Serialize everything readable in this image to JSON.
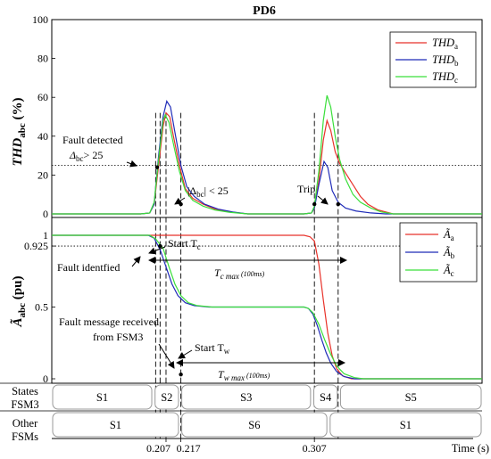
{
  "chart_data": [
    {
      "id": "thd",
      "type": "line",
      "title": "PD6",
      "ylabel_main": "THD",
      "ylabel_sub": "abc",
      "ylabel_unit": " (%)",
      "ylim": [
        0,
        100
      ],
      "yticks": [
        "0",
        "20",
        "40",
        "60",
        "80",
        "100"
      ],
      "threshold": 25,
      "legend_position": "top-right",
      "series": [
        {
          "name_main": "THD",
          "name_sub": "a",
          "color": "#e8322a",
          "points": [
            [
              0.13,
              0
            ],
            [
              0.19,
              0
            ],
            [
              0.196,
              0.5
            ],
            [
              0.199,
              5
            ],
            [
              0.202,
              25
            ],
            [
              0.205,
              45
            ],
            [
              0.207,
              52
            ],
            [
              0.2095,
              50
            ],
            [
              0.212,
              40
            ],
            [
              0.216,
              25
            ],
            [
              0.22,
              13
            ],
            [
              0.225,
              8
            ],
            [
              0.232,
              5
            ],
            [
              0.24,
              2.5
            ],
            [
              0.25,
              1
            ],
            [
              0.262,
              0
            ],
            [
              0.3,
              0
            ],
            [
              0.305,
              0.5
            ],
            [
              0.307,
              3
            ],
            [
              0.31,
              17
            ],
            [
              0.313,
              38
            ],
            [
              0.3155,
              48
            ],
            [
              0.318,
              43
            ],
            [
              0.321,
              32
            ],
            [
              0.324,
              26
            ],
            [
              0.328,
              21
            ],
            [
              0.333,
              15
            ],
            [
              0.338,
              9
            ],
            [
              0.343,
              5
            ],
            [
              0.35,
              2
            ],
            [
              0.36,
              0
            ],
            [
              0.42,
              0
            ]
          ]
        },
        {
          "name_main": "THD",
          "name_sub": "b",
          "color": "#1f2bb8",
          "points": [
            [
              0.13,
              0
            ],
            [
              0.19,
              0
            ],
            [
              0.196,
              0.5
            ],
            [
              0.199,
              5
            ],
            [
              0.202,
              30
            ],
            [
              0.205,
              50
            ],
            [
              0.2075,
              58
            ],
            [
              0.21,
              55
            ],
            [
              0.213,
              42
            ],
            [
              0.217,
              25
            ],
            [
              0.221,
              14
            ],
            [
              0.226,
              9
            ],
            [
              0.233,
              5
            ],
            [
              0.242,
              2.5
            ],
            [
              0.252,
              1
            ],
            [
              0.262,
              0
            ],
            [
              0.3,
              0
            ],
            [
              0.305,
              0.5
            ],
            [
              0.307,
              3
            ],
            [
              0.31,
              15
            ],
            [
              0.3135,
              27
            ],
            [
              0.316,
              24
            ],
            [
              0.319,
              12
            ],
            [
              0.323,
              6
            ],
            [
              0.328,
              3
            ],
            [
              0.335,
              1.5
            ],
            [
              0.345,
              0.5
            ],
            [
              0.355,
              0
            ],
            [
              0.42,
              0
            ]
          ]
        },
        {
          "name_main": "THD",
          "name_sub": "c",
          "color": "#3adf3a",
          "points": [
            [
              0.13,
              0
            ],
            [
              0.19,
              0
            ],
            [
              0.196,
              0.5
            ],
            [
              0.199,
              6
            ],
            [
              0.202,
              28
            ],
            [
              0.205,
              48
            ],
            [
              0.2065,
              51
            ],
            [
              0.209,
              47
            ],
            [
              0.212,
              36
            ],
            [
              0.216,
              22
            ],
            [
              0.22,
              12
            ],
            [
              0.225,
              7
            ],
            [
              0.232,
              4
            ],
            [
              0.24,
              2
            ],
            [
              0.25,
              0.8
            ],
            [
              0.262,
              0
            ],
            [
              0.3,
              0
            ],
            [
              0.305,
              0.5
            ],
            [
              0.307,
              4
            ],
            [
              0.31,
              22
            ],
            [
              0.313,
              48
            ],
            [
              0.3155,
              61
            ],
            [
              0.318,
              55
            ],
            [
              0.321,
              40
            ],
            [
              0.324,
              28
            ],
            [
              0.328,
              18
            ],
            [
              0.333,
              10
            ],
            [
              0.338,
              6
            ],
            [
              0.345,
              3
            ],
            [
              0.352,
              1
            ],
            [
              0.36,
              0
            ],
            [
              0.42,
              0
            ]
          ]
        }
      ],
      "markers": [
        {
          "x": 0.201,
          "y": 24
        },
        {
          "x": 0.217,
          "y": 5
        },
        {
          "x": 0.307,
          "y": 5
        },
        {
          "x": 0.323,
          "y": 5
        }
      ],
      "annotations": {
        "fault_detected": "Fault detected",
        "delta_main": "Δ",
        "delta_sub": "bc",
        "delta_cond": "> 25",
        "abs_open": "|Δ",
        "abs_sub": "bc",
        "abs_cond": "| < 25",
        "trip": "Trip"
      }
    },
    {
      "id": "amp",
      "type": "line",
      "ylabel_main": "Ã",
      "ylabel_sub": "abc",
      "ylabel_unit": " (pu)",
      "ylim": [
        0,
        1.05
      ],
      "yticks": [
        "0",
        "0.5",
        "0.925",
        "1"
      ],
      "threshold": 0.925,
      "legend_position": "top-right",
      "series": [
        {
          "name_main": "Ã",
          "name_sub": "a",
          "color": "#e8322a",
          "points": [
            [
              0.13,
              1
            ],
            [
              0.3,
              1
            ],
            [
              0.304,
              0.99
            ],
            [
              0.307,
              0.96
            ],
            [
              0.31,
              0.8
            ],
            [
              0.313,
              0.55
            ],
            [
              0.316,
              0.32
            ],
            [
              0.319,
              0.16
            ],
            [
              0.322,
              0.07
            ],
            [
              0.326,
              0.02
            ],
            [
              0.332,
              0
            ],
            [
              0.42,
              0
            ]
          ]
        },
        {
          "name_main": "Ã",
          "name_sub": "b",
          "color": "#1f2bb8",
          "points": [
            [
              0.13,
              1
            ],
            [
              0.195,
              1
            ],
            [
              0.199,
              0.98
            ],
            [
              0.203,
              0.9
            ],
            [
              0.207,
              0.78
            ],
            [
              0.211,
              0.66
            ],
            [
              0.215,
              0.58
            ],
            [
              0.22,
              0.53
            ],
            [
              0.226,
              0.51
            ],
            [
              0.236,
              0.5
            ],
            [
              0.3,
              0.5
            ],
            [
              0.303,
              0.49
            ],
            [
              0.306,
              0.45
            ],
            [
              0.309,
              0.37
            ],
            [
              0.312,
              0.27
            ],
            [
              0.315,
              0.18
            ],
            [
              0.318,
              0.11
            ],
            [
              0.322,
              0.05
            ],
            [
              0.327,
              0.015
            ],
            [
              0.334,
              0
            ],
            [
              0.42,
              0
            ]
          ]
        },
        {
          "name_main": "Ã",
          "name_sub": "c",
          "color": "#3adf3a",
          "points": [
            [
              0.13,
              1
            ],
            [
              0.196,
              1
            ],
            [
              0.2,
              0.975
            ],
            [
              0.205,
              0.91
            ],
            [
              0.209,
              0.78
            ],
            [
              0.213,
              0.66
            ],
            [
              0.217,
              0.58
            ],
            [
              0.222,
              0.53
            ],
            [
              0.228,
              0.51
            ],
            [
              0.238,
              0.5
            ],
            [
              0.3,
              0.5
            ],
            [
              0.303,
              0.49
            ],
            [
              0.306,
              0.46
            ],
            [
              0.31,
              0.38
            ],
            [
              0.314,
              0.27
            ],
            [
              0.318,
              0.17
            ],
            [
              0.322,
              0.09
            ],
            [
              0.327,
              0.035
            ],
            [
              0.334,
              0.008
            ],
            [
              0.34,
              0
            ],
            [
              0.42,
              0
            ]
          ]
        }
      ],
      "markers": [
        {
          "x": 0.203,
          "y": 0.925
        },
        {
          "x": 0.217,
          "y": 0.03
        }
      ],
      "annotations": {
        "start_tc_main": "Start T",
        "start_tc_sub": "c",
        "fault_identified": "Fault identfied",
        "tc_main": "T",
        "tc_sub": "c max",
        "tc_small": " (100ms)",
        "msg_line1": "Fault message received",
        "msg_line2": "from FSM3",
        "start_tw_main": "Start T",
        "start_tw_sub": "w",
        "tw_main": "T",
        "tw_sub": "w max",
        "tw_small": " (100ms)"
      }
    }
  ],
  "states": {
    "row1_label": [
      "States",
      "FSM3"
    ],
    "row2_label": [
      "Other",
      "FSMs"
    ],
    "row1": [
      {
        "label": "S1",
        "start": 0.13,
        "end": 0.198
      },
      {
        "label": "S2",
        "start": 0.199,
        "end": 0.216
      },
      {
        "label": "S3",
        "start": 0.217,
        "end": 0.305
      },
      {
        "label": "S4",
        "start": 0.306,
        "end": 0.323
      },
      {
        "label": "S5",
        "start": 0.324,
        "end": 0.42
      }
    ],
    "row2": [
      {
        "label": "S1",
        "start": 0.13,
        "end": 0.216
      },
      {
        "label": "S6",
        "start": 0.217,
        "end": 0.316
      },
      {
        "label": "S1",
        "start": 0.317,
        "end": 0.42
      }
    ]
  },
  "xaxis": {
    "label": "Time (s)",
    "ticks": [
      {
        "x": 0.207,
        "label": "0.207"
      },
      {
        "x": 0.217,
        "label": "0.217"
      },
      {
        "x": 0.307,
        "label": "0.307"
      }
    ],
    "xlim": [
      0.13,
      0.42
    ]
  },
  "guides": [
    0.2,
    0.203,
    0.207,
    0.217,
    0.307,
    0.323
  ]
}
